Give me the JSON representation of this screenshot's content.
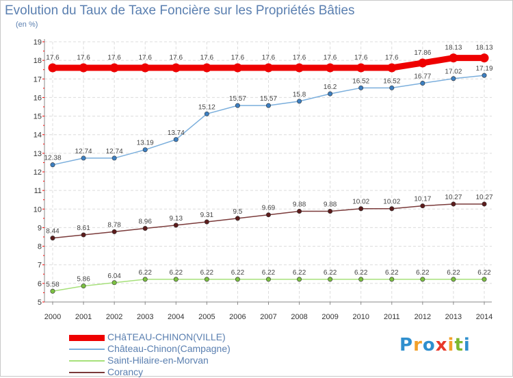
{
  "title": "Evolution du Taux de Taxe Foncière sur les Propriétés Bâties",
  "subtitle": "(en %)",
  "logo": {
    "text": "Proxiti",
    "letters": [
      {
        "ch": "P",
        "color": "#2f8fce"
      },
      {
        "ch": "r",
        "color": "#f2a02a"
      },
      {
        "ch": "o",
        "color": "#2f8fce"
      },
      {
        "ch": "x",
        "color": "#e8382a"
      },
      {
        "ch": "i",
        "color": "#f2a02a"
      },
      {
        "ch": "t",
        "color": "#7cb82f"
      },
      {
        "ch": "i",
        "color": "#2f8fce"
      }
    ]
  },
  "chart_data": {
    "type": "line",
    "x": [
      2000,
      2001,
      2002,
      2003,
      2004,
      2005,
      2006,
      2007,
      2008,
      2009,
      2010,
      2011,
      2012,
      2013,
      2014
    ],
    "ylim": [
      5,
      19
    ],
    "yticks": [
      5,
      6,
      7,
      8,
      9,
      10,
      11,
      12,
      13,
      14,
      15,
      16,
      17,
      18,
      19
    ],
    "grid": true,
    "legend_position": "bottom-left",
    "series": [
      {
        "name": "CHâTEAU-CHINON(VILLE)",
        "color": "#ee0000",
        "marker_color": "#ee0000",
        "emphasis": true,
        "values": [
          17.6,
          17.6,
          17.6,
          17.6,
          17.6,
          17.6,
          17.6,
          17.6,
          17.6,
          17.6,
          17.6,
          17.6,
          17.86,
          18.13,
          18.13
        ],
        "labels": [
          "17.6",
          "17.6",
          "17.6",
          "17.6",
          "17.6",
          "17.6",
          "17.6",
          "17.6",
          "17.6",
          "17.6",
          "17.6",
          "17.6",
          "17.86",
          "18.13",
          "18.13"
        ]
      },
      {
        "name": "Château-Chinon(Campagne)",
        "color": "#7aaedc",
        "marker_color": "#3d7fc1",
        "emphasis": false,
        "values": [
          12.38,
          12.74,
          12.74,
          13.19,
          13.74,
          15.12,
          15.57,
          15.57,
          15.8,
          16.2,
          16.52,
          16.52,
          16.77,
          17.02,
          17.19
        ],
        "labels": [
          "12.38",
          "12.74",
          "12.74",
          "13.19",
          "13.74",
          "15.12",
          "15.57",
          "15.57",
          "15.8",
          "16.2",
          "16.52",
          "16.52",
          "16.77",
          "17.02",
          "17.19"
        ]
      },
      {
        "name": "Saint-Hilaire-en-Morvan",
        "color": "#a6e07a",
        "marker_color": "#7cc142",
        "emphasis": false,
        "values": [
          5.58,
          5.86,
          6.04,
          6.22,
          6.22,
          6.22,
          6.22,
          6.22,
          6.22,
          6.22,
          6.22,
          6.22,
          6.22,
          6.22,
          6.22
        ],
        "labels": [
          "5.58",
          "5.86",
          "6.04",
          "6.22",
          "6.22",
          "6.22",
          "6.22",
          "6.22",
          "6.22",
          "6.22",
          "6.22",
          "6.22",
          "6.22",
          "6.22",
          "6.22"
        ]
      },
      {
        "name": "Corancy",
        "color": "#7a3a3a",
        "marker_color": "#5c1c1c",
        "emphasis": false,
        "values": [
          8.44,
          8.61,
          8.78,
          8.96,
          9.13,
          9.31,
          9.5,
          9.69,
          9.88,
          9.88,
          10.02,
          10.02,
          10.17,
          10.27,
          10.27
        ],
        "labels": [
          "8.44",
          "8.61",
          "8.78",
          "8.96",
          "9.13",
          "9.31",
          "9.5",
          "9.69",
          "9.88",
          "9.88",
          "10.02",
          "10.02",
          "10.17",
          "10.27",
          "10.27"
        ]
      }
    ]
  }
}
